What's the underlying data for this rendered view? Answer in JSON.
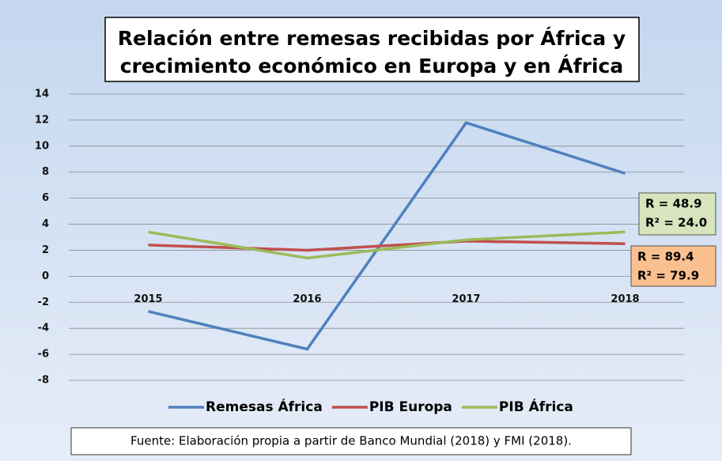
{
  "chart_data": {
    "type": "line",
    "title": [
      "Relación entre remesas recibidas por África y",
      "crecimiento económico en Europa y en África"
    ],
    "categories": [
      "2015",
      "2016",
      "2017",
      "2018"
    ],
    "series": [
      {
        "name": "Remesas África",
        "color": "#4f81bd",
        "values": [
          -2.7,
          -5.6,
          11.8,
          7.9
        ]
      },
      {
        "name": "PIB Europa",
        "color": "#c0504d",
        "values": [
          2.4,
          2.0,
          2.7,
          2.5
        ]
      },
      {
        "name": "PIB África",
        "color": "#9bbb59",
        "values": [
          3.4,
          1.4,
          2.8,
          3.4
        ]
      }
    ],
    "ylim": [
      -8,
      14
    ],
    "yticks": [
      -8,
      -6,
      -4,
      -2,
      0,
      2,
      4,
      6,
      8,
      10,
      12,
      14
    ],
    "grid": true,
    "annotations": [
      {
        "lines": [
          "R = 48.9",
          "R² = 24.0"
        ],
        "color": "#d7e4bd"
      },
      {
        "lines": [
          "R = 89.4",
          "R² = 79.9"
        ],
        "color": "#fac090"
      }
    ],
    "source": "Fuente: Elaboración propia a partir de Banco Mundial (2018) y FMI (2018)."
  }
}
